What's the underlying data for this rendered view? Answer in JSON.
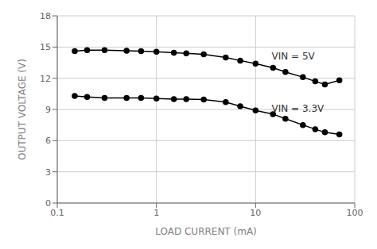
{
  "chart_data": {
    "type": "line",
    "xlabel": "LOAD CURRENT (mA)",
    "ylabel": "OUTPUT VOLTAGE (V)",
    "log": "x",
    "grid": true,
    "xlim": [
      0.1,
      100
    ],
    "xticks": [
      0.1,
      1,
      10,
      100
    ],
    "ylim": [
      0,
      18
    ],
    "yticks": [
      0,
      3,
      6,
      9,
      12,
      15,
      18
    ],
    "marker": "circle",
    "series": [
      {
        "color": "#000000",
        "x": [
          0.15,
          0.2,
          0.3,
          0.5,
          0.7,
          1.0,
          1.5,
          2.0,
          3.0,
          5.0,
          7.0,
          10.0,
          15.0,
          20.0,
          30.0,
          40.0,
          50.0,
          70.0
        ],
        "values": [
          14.6,
          14.7,
          14.7,
          14.65,
          14.6,
          14.55,
          14.45,
          14.4,
          14.3,
          14.0,
          13.7,
          13.4,
          13.0,
          12.6,
          12.1,
          11.7,
          11.4,
          11.8
        ]
      },
      {
        "color": "#000000",
        "x": [
          0.15,
          0.2,
          0.3,
          0.5,
          0.7,
          1.0,
          1.5,
          2.0,
          3.0,
          5.0,
          7.0,
          10.0,
          15.0,
          20.0,
          30.0,
          40.0,
          50.0,
          70.0
        ],
        "values": [
          10.3,
          10.2,
          10.1,
          10.1,
          10.1,
          10.05,
          10.0,
          10.0,
          9.95,
          9.7,
          9.3,
          8.9,
          8.55,
          8.1,
          7.5,
          7.1,
          6.8,
          6.6
        ]
      }
    ],
    "annotations": [
      {
        "text": "VIN = 5V",
        "x": 13.0,
        "y": 14.1
      },
      {
        "text": "VIN = 3.3V",
        "x": 13.0,
        "y": 9.1
      }
    ]
  }
}
